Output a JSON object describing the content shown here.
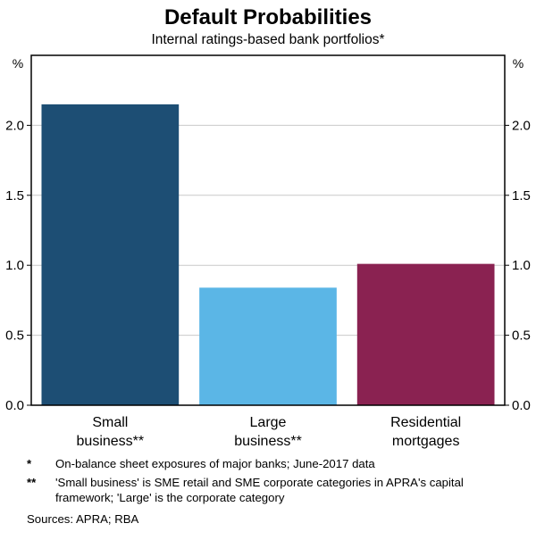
{
  "chart_data": {
    "type": "bar",
    "title": "Default Probabilities",
    "subtitle": "Internal ratings-based bank portfolios*",
    "unit_left": "%",
    "unit_right": "%",
    "categories": [
      "Small\nbusiness**",
      "Large\nbusiness**",
      "Residential\nmortgages"
    ],
    "values": [
      2.15,
      0.84,
      1.01
    ],
    "bar_colors": [
      "#1d4e74",
      "#5bb6e6",
      "#8a2251"
    ],
    "ylim": [
      0,
      2.5
    ],
    "yticks": [
      0.0,
      0.5,
      1.0,
      1.5,
      2.0
    ],
    "grid": true,
    "grid_color": "#c9c9c9",
    "ytick_format_decimals": 1
  },
  "footnotes": [
    {
      "marker": "*",
      "text": "On-balance sheet exposures of major banks; June-2017 data"
    },
    {
      "marker": "**",
      "text": "'Small business' is SME retail and SME corporate categories in APRA's capital framework; 'Large' is the corporate category"
    }
  ],
  "sources": "Sources: APRA; RBA"
}
